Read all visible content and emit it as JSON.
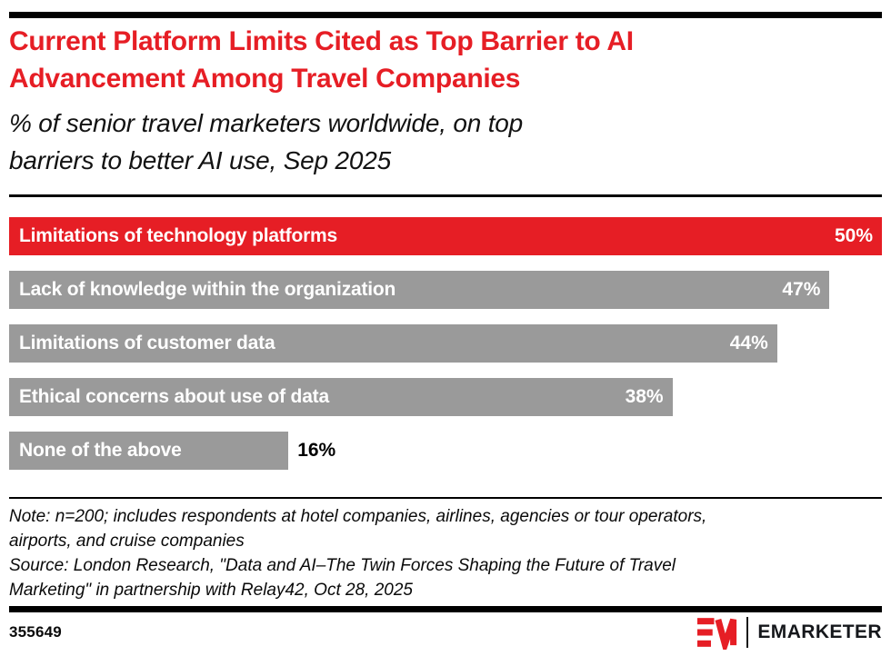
{
  "header": {
    "title": "Current Platform Limits Cited as Top Barrier to AI\nAdvancement Among Travel Companies",
    "subtitle": "% of senior travel marketers worldwide, on top\nbarriers to better AI use, Sep 2025"
  },
  "chart_data": {
    "type": "bar",
    "orientation": "horizontal",
    "title": "Current Platform Limits Cited as Top Barrier to AI Advancement Among Travel Companies",
    "subtitle": "% of senior travel marketers worldwide, on top barriers to better AI use, Sep 2025",
    "categories": [
      "Limitations of technology platforms",
      "Lack of knowledge within the organization",
      "Limitations of customer data",
      "Ethical concerns about use of data",
      "None of the above"
    ],
    "values": [
      50,
      47,
      44,
      38,
      16
    ],
    "unit": "%",
    "xlim": [
      0,
      50
    ],
    "grid": false,
    "legend": "none",
    "value_labels": [
      "50%",
      "47%",
      "44%",
      "38%",
      "16%"
    ],
    "bar_colors": [
      "#E61E25",
      "#9A9A9A",
      "#9A9A9A",
      "#9A9A9A",
      "#9A9A9A"
    ],
    "note": "Note: n=200; includes respondents at hotel companies, airlines, agencies or tour operators, airports, and cruise companies",
    "source": "Source: London Research, \"Data and AI–The Twin Forces Shaping the Future of Travel Marketing\" in partnership with Relay42, Oct 28, 2025"
  },
  "footer": {
    "note": "Note: n=200; includes respondents at hotel companies, airlines, agencies or tour operators,\nairports, and cruise companies",
    "source": "Source: London Research, \"Data and AI–The Twin Forces Shaping the Future of Travel\nMarketing\" in partnership with Relay42, Oct 28, 2025",
    "chart_id": "355649",
    "brand": "EMARKETER"
  },
  "colors": {
    "accent_red": "#E61E25",
    "bar_gray": "#9A9A9A",
    "rule_black": "#000000",
    "value_inside": "#FFFFFF",
    "value_outside": "#000000"
  }
}
